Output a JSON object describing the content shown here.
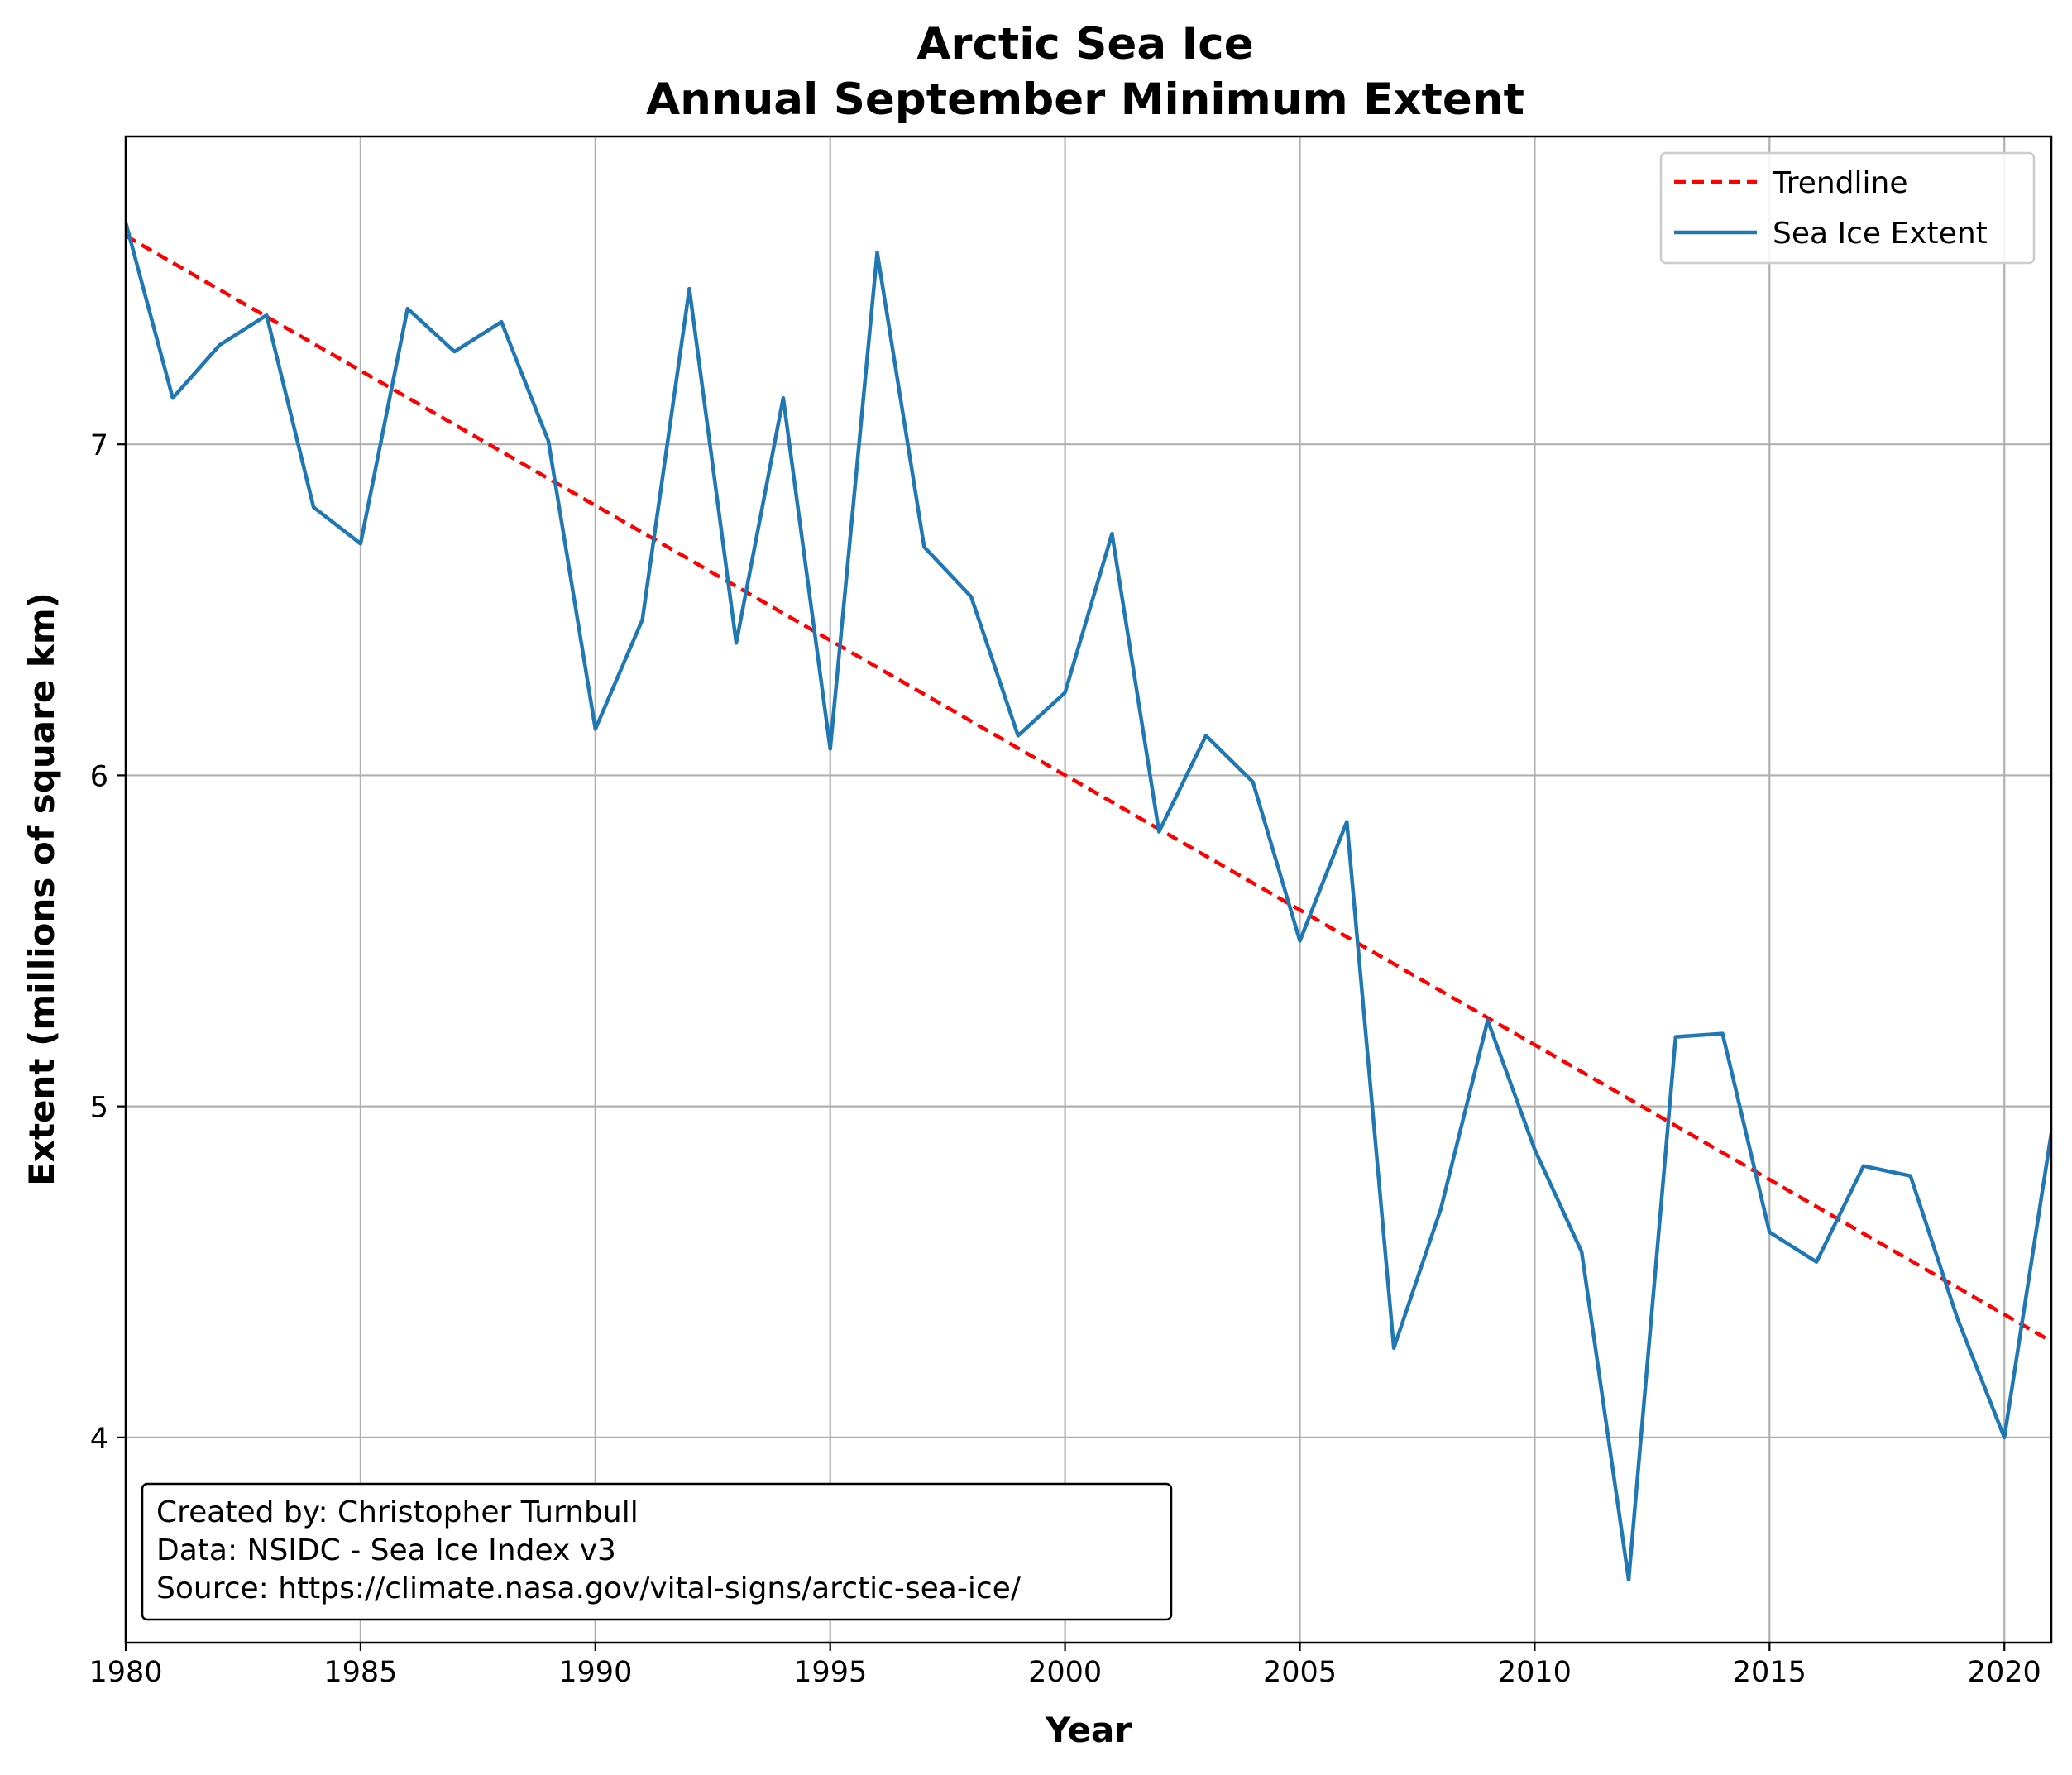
{
  "chart_data": {
    "type": "line",
    "title": "Arctic Sea Ice",
    "subtitle": "Annual September Minimum Extent",
    "xlabel": "Year",
    "ylabel": "Extent (millions of square km)",
    "xlim": [
      1980,
      2021
    ],
    "ylim": [
      3.38,
      7.93
    ],
    "x_ticks": [
      1980,
      1985,
      1990,
      1995,
      2000,
      2005,
      2010,
      2015,
      2020
    ],
    "y_ticks": [
      4,
      5,
      6,
      7
    ],
    "grid": true,
    "legend_position": "top-right",
    "series": [
      {
        "name": "Trendline",
        "style": "dashed",
        "color": "#ff0000",
        "x": [
          1980,
          2021
        ],
        "y": [
          7.63,
          4.29
        ]
      },
      {
        "name": "Sea Ice Extent",
        "style": "solid",
        "color": "#1f77b4",
        "x": [
          1980,
          1981,
          1982,
          1983,
          1984,
          1985,
          1986,
          1987,
          1988,
          1989,
          1990,
          1991,
          1992,
          1993,
          1994,
          1995,
          1996,
          1997,
          1998,
          1999,
          2000,
          2001,
          2002,
          2003,
          2004,
          2005,
          2006,
          2007,
          2008,
          2009,
          2010,
          2011,
          2012,
          2013,
          2014,
          2015,
          2016,
          2017,
          2018,
          2019,
          2020,
          2021
        ],
        "y": [
          7.67,
          7.14,
          7.3,
          7.39,
          6.81,
          6.7,
          7.41,
          7.28,
          7.37,
          7.01,
          6.14,
          6.47,
          7.47,
          6.4,
          7.14,
          6.08,
          7.58,
          6.69,
          6.54,
          6.12,
          6.25,
          6.73,
          5.83,
          6.12,
          5.98,
          5.5,
          5.86,
          4.27,
          4.69,
          5.26,
          4.87,
          4.56,
          3.57,
          5.21,
          5.22,
          4.62,
          4.53,
          4.82,
          4.79,
          4.36,
          4.0,
          4.92
        ]
      }
    ],
    "annotation_lines": [
      "Created by: Christopher Turnbull",
      "Data: NSIDC - Sea Ice Index v3",
      "Source: https://climate.nasa.gov/vital-signs/arctic-sea-ice/"
    ]
  }
}
